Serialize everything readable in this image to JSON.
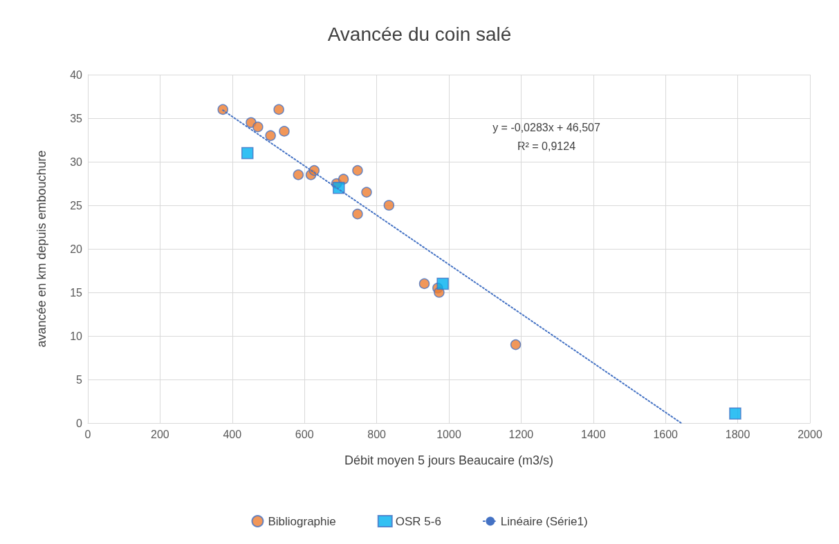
{
  "chart_data": {
    "type": "scatter",
    "title": "Avancée du coin salé",
    "xlabel": "Débit moyen 5 jours Beaucaire (m3/s)",
    "ylabel": "avancée en km depuis embouchure",
    "xlim": [
      0,
      2000
    ],
    "xticks": [
      0,
      200,
      400,
      600,
      800,
      1000,
      1200,
      1400,
      1600,
      1800,
      2000
    ],
    "ylim": [
      0,
      40
    ],
    "yticks": [
      0,
      5,
      10,
      15,
      20,
      25,
      30,
      35,
      40
    ],
    "grid": true,
    "legend": "bottom",
    "annotations": [
      "y = -0,0283x + 46,507",
      "R² = 0,9124"
    ],
    "series": [
      {
        "name": "Bibliographie",
        "type": "scatter",
        "marker": "circle",
        "color": "#ed7d31",
        "x": [
          374,
          452,
          471,
          506,
          529,
          544,
          583,
          618,
          627,
          689,
          708,
          747,
          747,
          772,
          834,
          932,
          969,
          973,
          1185
        ],
        "values": [
          36,
          34.5,
          34,
          33,
          36,
          33.5,
          28.5,
          28.5,
          29,
          27.5,
          28,
          29,
          24,
          26.5,
          25,
          16,
          15.5,
          15,
          9
        ]
      },
      {
        "name": "OSR 5-6",
        "type": "scatter",
        "marker": "square",
        "color": "#00b0f0",
        "x": [
          442,
          695,
          983,
          1793
        ],
        "values": [
          31,
          27,
          16,
          1.1
        ]
      },
      {
        "name": "Linéaire (Série1)",
        "type": "line",
        "marker": "none",
        "line_style": "dotted",
        "color": "#4472c4",
        "x": [
          374,
          1643
        ],
        "values": [
          35.92,
          0.01
        ]
      }
    ]
  }
}
